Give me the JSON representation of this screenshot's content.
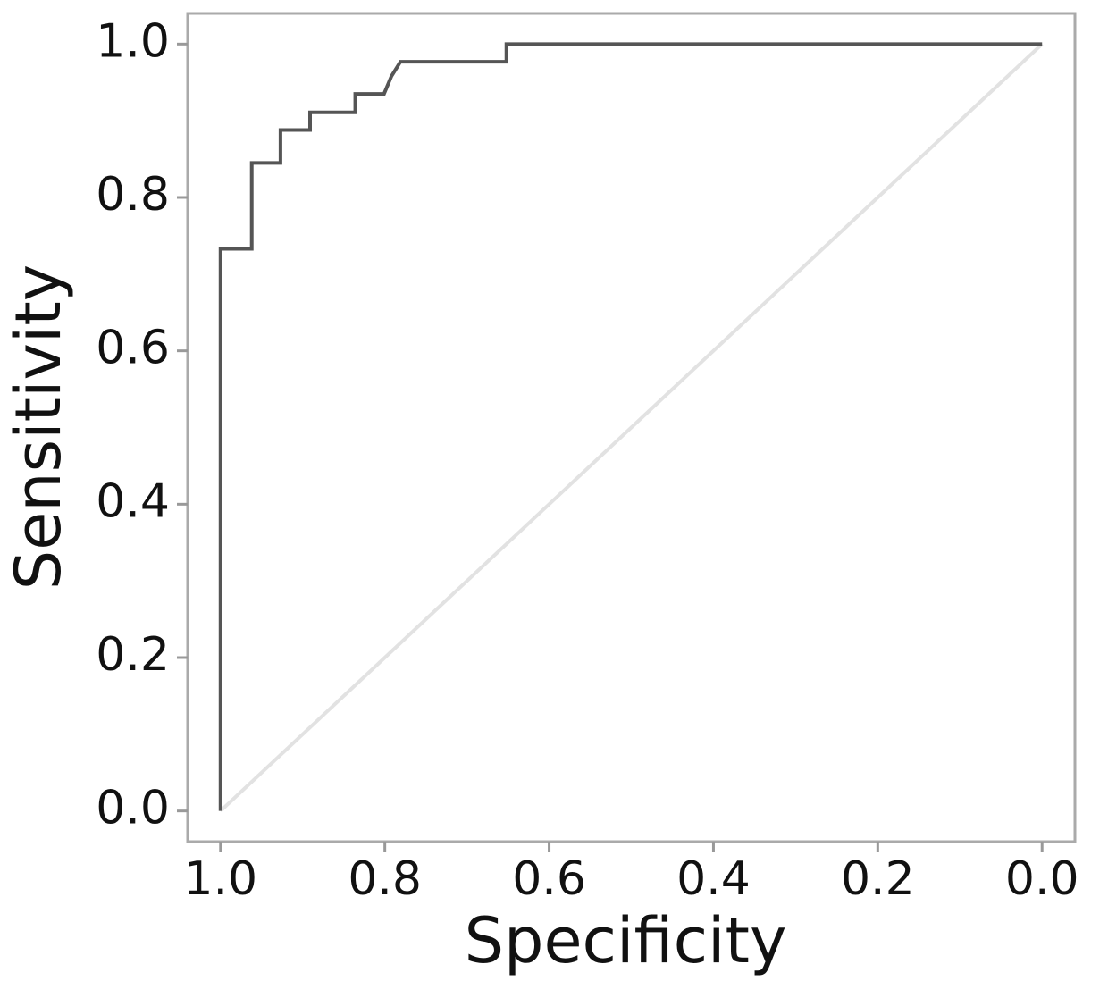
{
  "chart_data": {
    "type": "line",
    "xlabel": "Specificity",
    "ylabel": "Sensitivity",
    "xlim": [
      1.04,
      -0.04
    ],
    "ylim": [
      -0.04,
      1.04
    ],
    "xticks": [
      {
        "value": 1,
        "label": "1.0"
      },
      0.8,
      0.6,
      0.4,
      0.2,
      {
        "value": 0,
        "label": "0.0"
      }
    ],
    "yticks": [
      {
        "value": 0,
        "label": "0.0"
      },
      0.2,
      0.4,
      0.6,
      0.8,
      {
        "value": 1,
        "label": "1.0"
      }
    ],
    "series": [
      {
        "color": "#555555",
        "x": [
          1.0,
          1.0,
          0.962,
          0.962,
          0.927,
          0.927,
          0.891,
          0.891,
          0.836,
          0.836,
          0.801,
          0.792,
          0.781,
          0.652,
          0.652,
          0.0
        ],
        "values": [
          0,
          0.733,
          0.733,
          0.845,
          0.845,
          0.888,
          0.888,
          0.911,
          0.911,
          0.935,
          0.935,
          0.958,
          0.977,
          0.977,
          1.0,
          1.0
        ]
      },
      {
        "color": "#e2e2e2",
        "x": [
          1.0,
          0.0
        ],
        "values": [
          0,
          1.0
        ]
      }
    ]
  }
}
